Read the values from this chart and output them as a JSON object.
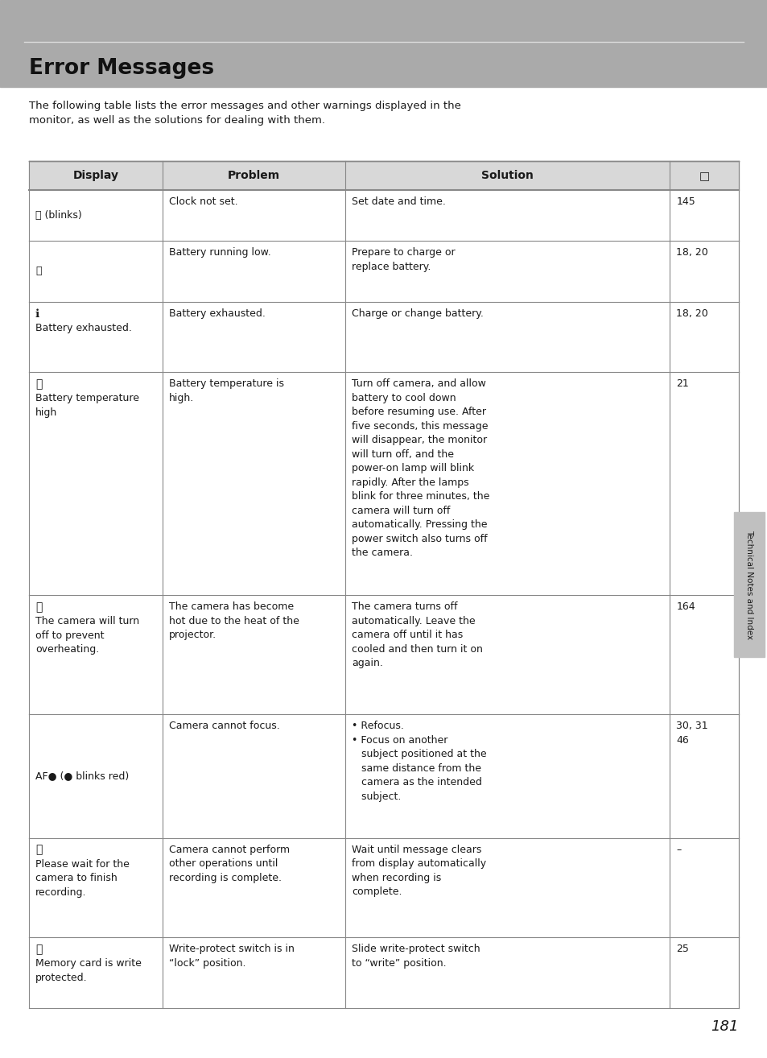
{
  "title": "Error Messages",
  "bg_header_color": "#aaaaaa",
  "bg_table_header": "#d8d8d8",
  "bg_white": "#ffffff",
  "text_color": "#1a1a1a",
  "border_color": "#888888",
  "intro_text": "The following table lists the error messages and other warnings displayed in the\nmonitor, as well as the solutions for dealing with them.",
  "col_headers": [
    "Display",
    "Problem",
    "Solution",
    "□"
  ],
  "col_ratios": [
    0.188,
    0.258,
    0.457,
    0.097
  ],
  "rows": [
    {
      "d1": "⓪ (blinks)",
      "d2": "",
      "problem": "Clock not set.",
      "solution": "Set date and time.",
      "page": "145",
      "rh": 52
    },
    {
      "d1": "⎓",
      "d2": "",
      "problem": "Battery running low.",
      "solution": "Prepare to charge or\nreplace battery.",
      "page": "18, 20",
      "rh": 62
    },
    {
      "d1": "ℹ",
      "d2": "Battery exhausted.",
      "problem": "Battery exhausted.",
      "solution": "Charge or change battery.",
      "page": "18, 20",
      "rh": 72
    },
    {
      "d1": "ⓘ",
      "d2": "Battery temperature\nhigh",
      "problem": "Battery temperature is\nhigh.",
      "solution": "Turn off camera, and allow\nbattery to cool down\nbefore resuming use. After\nfive seconds, this message\nwill disappear, the monitor\nwill turn off, and the\npower-on lamp will blink\nrapidly. After the lamps\nblink for three minutes, the\ncamera will turn off\nautomatically. Pressing the\npower switch also turns off\nthe camera.",
      "page": "21",
      "rh": 228
    },
    {
      "d1": "ⓘ",
      "d2": "The camera will turn\noff to prevent\noverheating.",
      "problem": "The camera has become\nhot due to the heat of the\nprojector.",
      "solution": "The camera turns off\nautomatically. Leave the\ncamera off until it has\ncooled and then turn it on\nagain.",
      "page": "164",
      "rh": 122
    },
    {
      "d1": "AF● (● blinks red)",
      "d2": "",
      "problem": "Camera cannot focus.",
      "solution": "• Refocus.\n• Focus on another\n   subject positioned at the\n   same distance from the\n   camera as the intended\n   subject.",
      "page": "30, 31\n46",
      "rh": 126
    },
    {
      "d1": "ⓘ",
      "d2": "Please wait for the\ncamera to finish\nrecording.",
      "problem": "Camera cannot perform\nother operations until\nrecording is complete.",
      "solution": "Wait until message clears\nfrom display automatically\nwhen recording is\ncomplete.",
      "page": "–",
      "rh": 102
    },
    {
      "d1": "ⓘ",
      "d2": "Memory card is write\nprotected.",
      "problem": "Write-protect switch is in\n“lock” position.",
      "solution": "Slide write-protect switch\nto “write” position.",
      "page": "25",
      "rh": 72
    }
  ],
  "page_number": "181",
  "sidebar_text": "Technical Notes and Index"
}
